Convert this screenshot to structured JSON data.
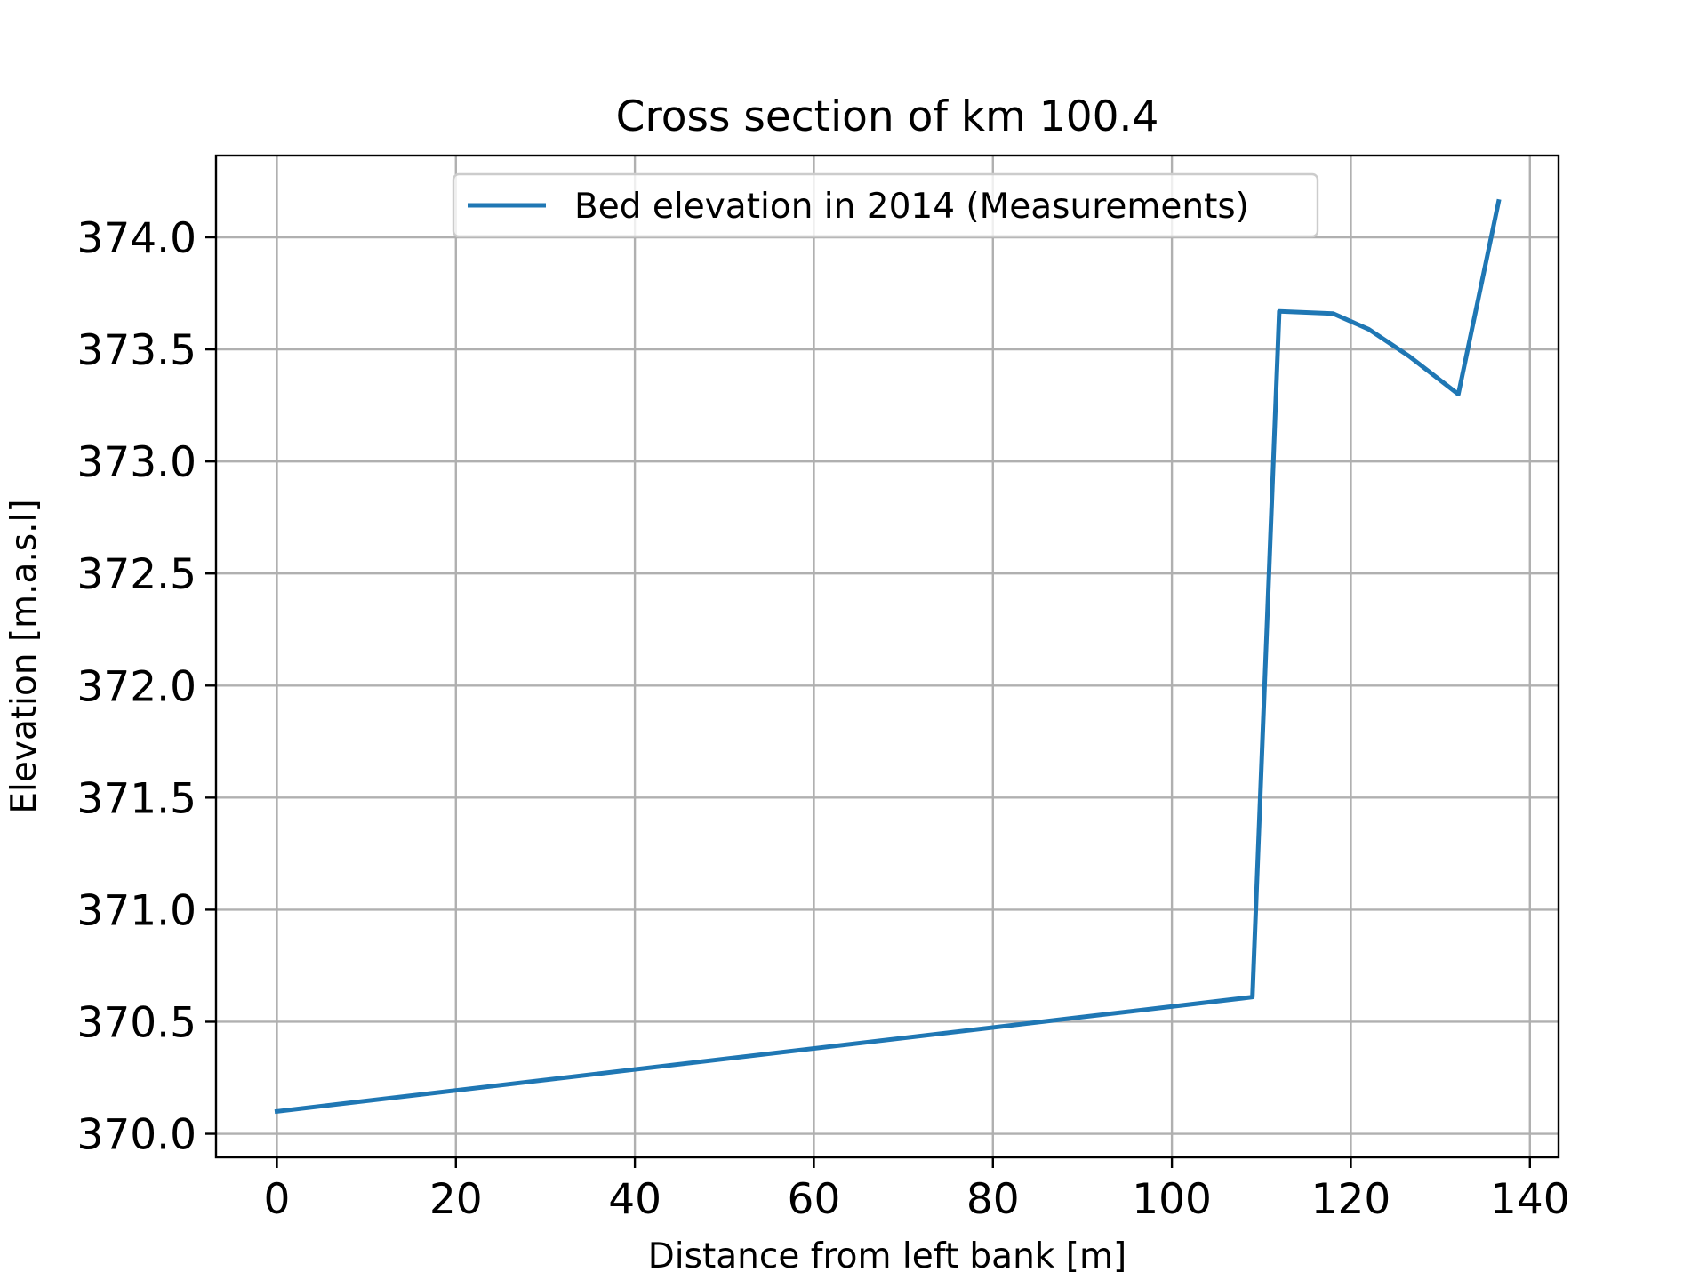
{
  "chart_data": {
    "type": "line",
    "title": "Cross section of km 100.4",
    "xlabel": "Distance from left bank [m]",
    "ylabel": "Elevation [m.a.s.l]",
    "xlim": [
      -6.8,
      143.2
    ],
    "ylim": [
      369.895,
      374.365
    ],
    "xticks": [
      0,
      20,
      40,
      60,
      80,
      100,
      120,
      140
    ],
    "xtick_labels": [
      "0",
      "20",
      "40",
      "60",
      "80",
      "100",
      "120",
      "140"
    ],
    "yticks": [
      370.0,
      370.5,
      371.0,
      371.5,
      372.0,
      372.5,
      373.0,
      373.5,
      374.0
    ],
    "ytick_labels": [
      "370.0",
      "370.5",
      "371.0",
      "371.5",
      "372.0",
      "372.5",
      "373.0",
      "373.5",
      "374.0"
    ],
    "grid": true,
    "legend_position": "top-center",
    "series": [
      {
        "name": "Bed elevation in 2014 (Measurements)",
        "color": "#1f77b4",
        "x": [
          0,
          109,
          112,
          118,
          122,
          126.5,
          132,
          136.5
        ],
        "y": [
          370.1,
          370.61,
          373.67,
          373.66,
          373.59,
          373.47,
          373.3,
          374.16
        ]
      }
    ]
  }
}
